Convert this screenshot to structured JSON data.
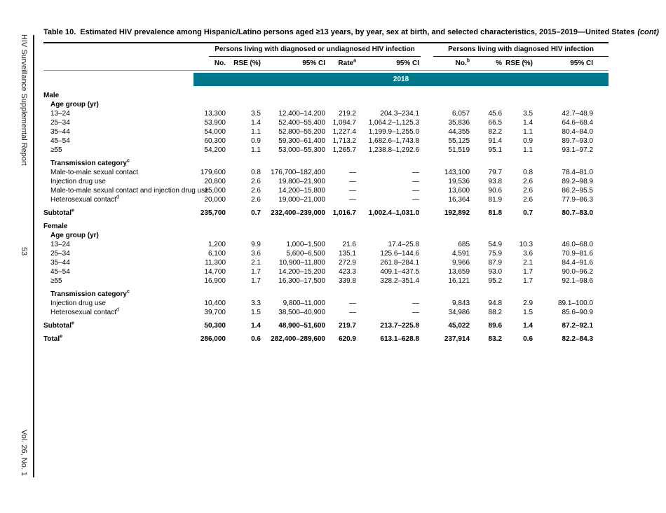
{
  "sidebar": {
    "report_title": "HIV Surveillance Supplemental Report",
    "page_number": "53",
    "volume": "Vol. 26, No. 1"
  },
  "table": {
    "title_label": "Table 10.",
    "title_text": "Estimated HIV prevalence among Hispanic/Latino persons aged ≥13 years, by year, sex at birth, and selected characteristics, 2015–2019—United States",
    "title_cont": "(cont)",
    "accent_color": "#00778B",
    "group_headers": [
      "Persons living with diagnosed or undiagnosed HIV infection",
      "Persons living with diagnosed HIV infection"
    ],
    "columns": [
      {
        "text": "No."
      },
      {
        "text": "RSE (%)"
      },
      {
        "text": "95% CI"
      },
      {
        "text": "Rate",
        "sup": "a"
      },
      {
        "text": "95% CI"
      },
      {
        "text": "No.",
        "sup": "b"
      },
      {
        "text": "%"
      },
      {
        "text": "RSE (%)"
      },
      {
        "text": "95% CI"
      }
    ],
    "year_band": "2018",
    "rows": [
      {
        "type": "section",
        "label": "Male"
      },
      {
        "type": "subhead",
        "label": "Age group (yr)"
      },
      {
        "type": "data",
        "label": "13–24",
        "values": [
          "13,300",
          "3.5",
          "12,400–14,200",
          "219.2",
          "204.3–234.1",
          "6,057",
          "45.6",
          "3.5",
          "42.7–48.9"
        ]
      },
      {
        "type": "data",
        "label": "25–34",
        "values": [
          "53,900",
          "1.4",
          "52,400–55,400",
          "1,094.7",
          "1,064.2–1,125.3",
          "35,836",
          "66.5",
          "1.4",
          "64.6–68.4"
        ]
      },
      {
        "type": "data",
        "label": "35–44",
        "values": [
          "54,000",
          "1.1",
          "52,800–55,200",
          "1,227.4",
          "1,199.9–1,255.0",
          "44,355",
          "82.2",
          "1.1",
          "80.4–84.0"
        ]
      },
      {
        "type": "data",
        "label": "45–54",
        "values": [
          "60,300",
          "0.9",
          "59,300–61,400",
          "1,713.2",
          "1,682.6–1,743.8",
          "55,125",
          "91.4",
          "0.9",
          "89.7–93.0"
        ]
      },
      {
        "type": "data",
        "label": "≥55",
        "values": [
          "54,200",
          "1.1",
          "53,000–55,300",
          "1,265.7",
          "1,238.8–1,292.6",
          "51,519",
          "95.1",
          "1.1",
          "93.1–97.2"
        ]
      },
      {
        "type": "gap"
      },
      {
        "type": "subhead",
        "label": "Transmission category",
        "sup": "c"
      },
      {
        "type": "data",
        "label": "Male-to-male sexual contact",
        "values": [
          "179,600",
          "0.8",
          "176,700–182,400",
          "—",
          "—",
          "143,100",
          "79.7",
          "0.8",
          "78.4–81.0"
        ]
      },
      {
        "type": "data",
        "label": "Injection drug use",
        "values": [
          "20,800",
          "2.6",
          "19,800–21,900",
          "—",
          "—",
          "19,536",
          "93.8",
          "2.6",
          "89.2–98.9"
        ]
      },
      {
        "type": "data",
        "label": "Male-to-male sexual contact and injection drug use",
        "values": [
          "15,000",
          "2.6",
          "14,200–15,800",
          "—",
          "—",
          "13,600",
          "90.6",
          "2.6",
          "86.2–95.5"
        ]
      },
      {
        "type": "data",
        "label": "Heterosexual contact",
        "sup": "d",
        "values": [
          "20,000",
          "2.6",
          "19,000–21,000",
          "—",
          "—",
          "16,364",
          "81.9",
          "2.6",
          "77.9–86.3"
        ]
      },
      {
        "type": "gap"
      },
      {
        "type": "subtotal",
        "label": "Subtotal",
        "sup": "e",
        "values": [
          "235,700",
          "0.7",
          "232,400–239,000",
          "1,016.7",
          "1,002.4–1,031.0",
          "192,892",
          "81.8",
          "0.7",
          "80.7–83.0"
        ]
      },
      {
        "type": "gap"
      },
      {
        "type": "section",
        "label": "Female"
      },
      {
        "type": "subhead",
        "label": "Age group (yr)"
      },
      {
        "type": "data",
        "label": "13–24",
        "values": [
          "1,200",
          "9.9",
          "1,000–1,500",
          "21.6",
          "17.4–25.8",
          "685",
          "54.9",
          "10.3",
          "46.0–68.0"
        ]
      },
      {
        "type": "data",
        "label": "25–34",
        "values": [
          "6,100",
          "3.6",
          "5,600–6,500",
          "135.1",
          "125.6–144.6",
          "4,591",
          "75.9",
          "3.6",
          "70.9–81.6"
        ]
      },
      {
        "type": "data",
        "label": "35–44",
        "values": [
          "11,300",
          "2.1",
          "10,900–11,800",
          "272.9",
          "261.8–284.1",
          "9,966",
          "87.9",
          "2.1",
          "84.4–91.6"
        ]
      },
      {
        "type": "data",
        "label": "45–54",
        "values": [
          "14,700",
          "1.7",
          "14,200–15,200",
          "423.3",
          "409.1–437.5",
          "13,659",
          "93.0",
          "1.7",
          "90.0–96.2"
        ]
      },
      {
        "type": "data",
        "label": "≥55",
        "values": [
          "16,900",
          "1.7",
          "16,300–17,500",
          "339.8",
          "328.2–351.4",
          "16,121",
          "95.2",
          "1.7",
          "92.1–98.6"
        ]
      },
      {
        "type": "gap"
      },
      {
        "type": "subhead",
        "label": "Transmission category",
        "sup": "c"
      },
      {
        "type": "data",
        "label": "Injection drug use",
        "values": [
          "10,400",
          "3.3",
          "9,800–11,000",
          "—",
          "—",
          "9,843",
          "94.8",
          "2.9",
          "89.1–100.0"
        ]
      },
      {
        "type": "data",
        "label": "Heterosexual contact",
        "sup": "d",
        "values": [
          "39,700",
          "1.5",
          "38,500–40,900",
          "—",
          "—",
          "34,986",
          "88.2",
          "1.5",
          "85.6–90.9"
        ]
      },
      {
        "type": "gap"
      },
      {
        "type": "subtotal",
        "label": "Subtotal",
        "sup": "e",
        "values": [
          "50,300",
          "1.4",
          "48,900–51,600",
          "219.7",
          "213.7–225.8",
          "45,022",
          "89.6",
          "1.4",
          "87.2–92.1"
        ]
      },
      {
        "type": "gap"
      },
      {
        "type": "total",
        "label": "Total",
        "sup": "e",
        "values": [
          "286,000",
          "0.6",
          "282,400–289,600",
          "620.9",
          "613.1–628.8",
          "237,914",
          "83.2",
          "0.6",
          "82.2–84.3"
        ]
      }
    ]
  }
}
